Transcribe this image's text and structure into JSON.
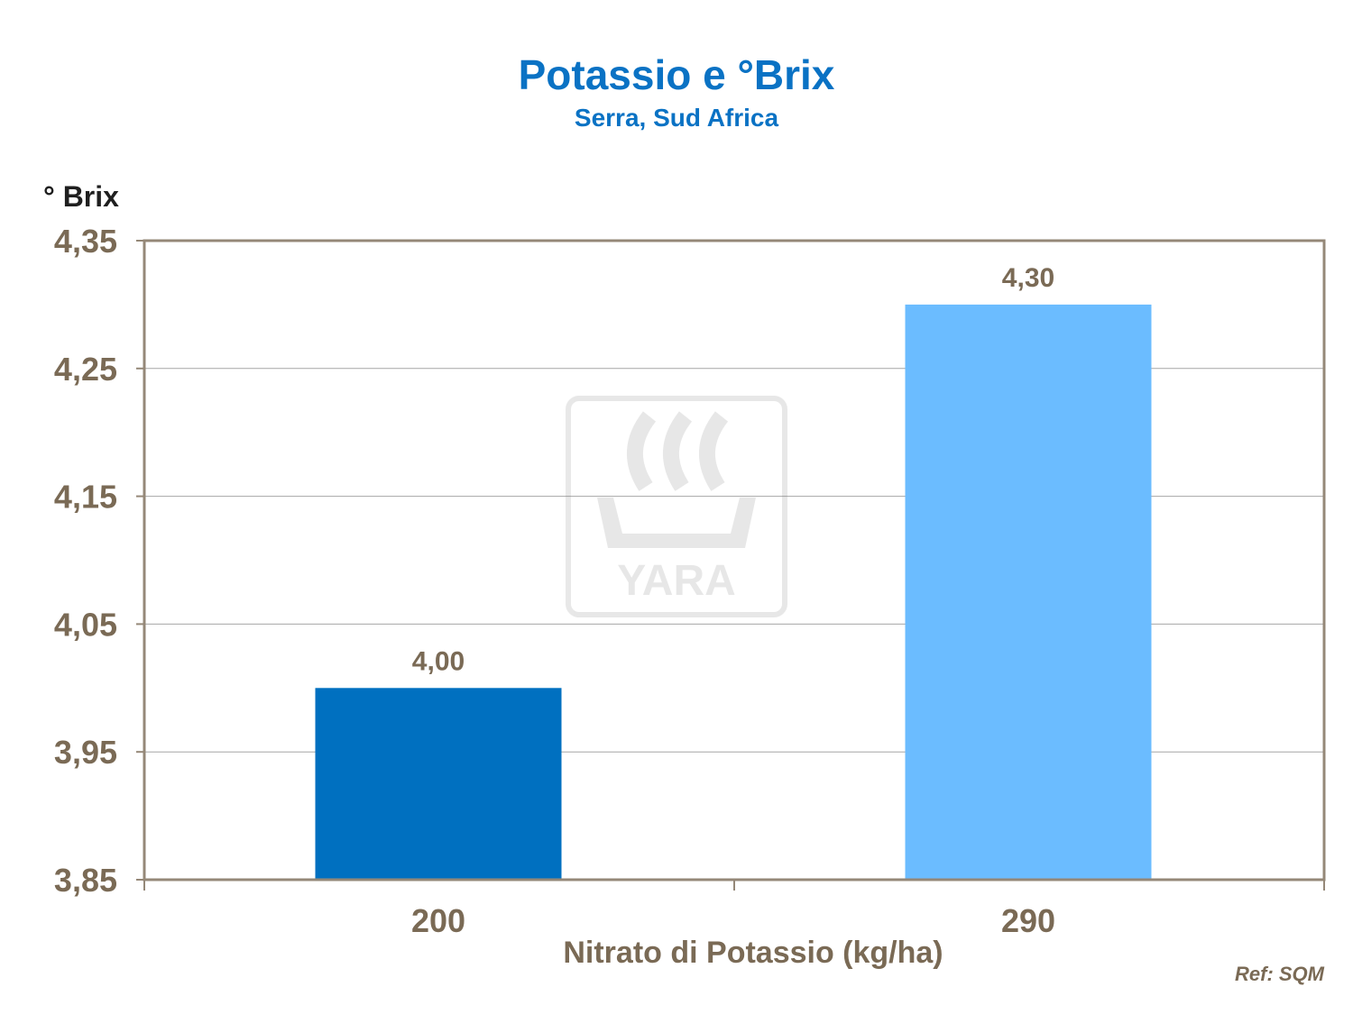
{
  "chart_data": {
    "type": "bar",
    "title": "Potassio e °Brix",
    "subtitle": "Serra, Sud Africa",
    "ylabel": "° Brix",
    "xlabel": "Nitrato di Potassio (kg/ha)",
    "categories": [
      "200",
      "290"
    ],
    "values": [
      4.0,
      4.3
    ],
    "value_labels": [
      "4,00",
      "4,30"
    ],
    "ylim": [
      3.85,
      4.35
    ],
    "yticks": [
      3.85,
      3.95,
      4.05,
      4.15,
      4.25,
      4.35
    ],
    "ytick_labels": [
      "3,85",
      "3,95",
      "4,05",
      "4,15",
      "4,25",
      "4,35"
    ],
    "bar_colors": [
      "#0070c0",
      "#6bbcff"
    ],
    "grid": true,
    "legend": false
  },
  "watermark": {
    "text": "YARA"
  },
  "reference": "Ref: SQM",
  "colors": {
    "title": "#0a72c4",
    "axis_text": "#7a6a55",
    "frame": "#958878",
    "grid": "#a6a6a6"
  }
}
